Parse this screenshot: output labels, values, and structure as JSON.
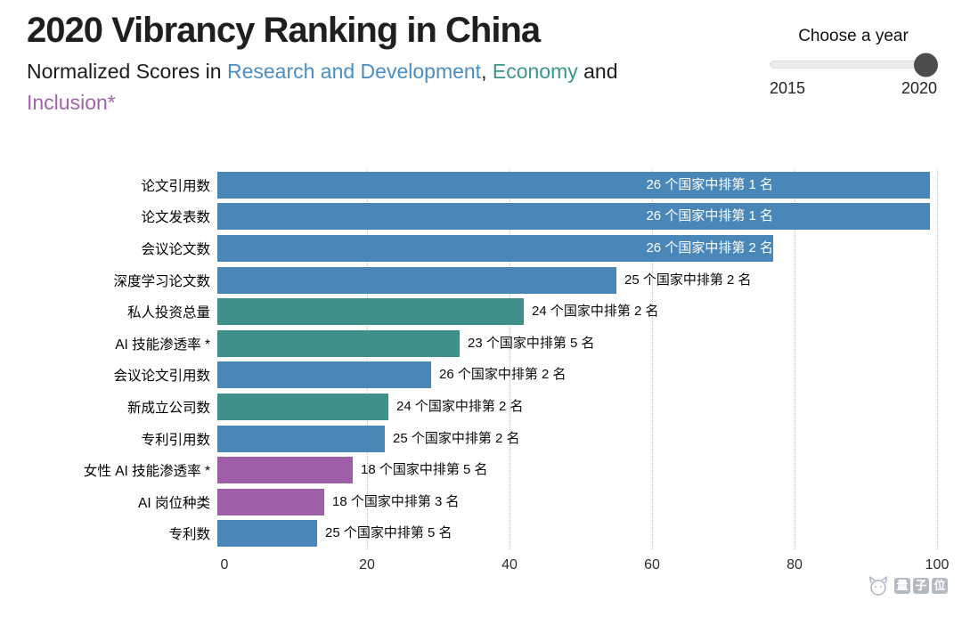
{
  "header": {
    "title": "2020 Vibrancy Ranking in China",
    "subtitle": {
      "prefix": "Normalized Scores in ",
      "rd": "Research and Development",
      "comma": ", ",
      "economy": "Economy",
      "and": " and ",
      "inclusion": "Inclusion*"
    }
  },
  "slider": {
    "label": "Choose a year",
    "min_label": "2015",
    "max_label": "2020",
    "selected_value": "2020"
  },
  "colors": {
    "rd": "#4a87b9",
    "economy": "#3f9089",
    "inclusion": "#9e5fa8"
  },
  "chart_data": {
    "type": "bar",
    "orientation": "horizontal",
    "xlim": [
      0,
      100
    ],
    "ticks": [
      0,
      20,
      40,
      60,
      80,
      100
    ],
    "grid": "dotted-vertical",
    "legend": "color-coded by category: Research and Development (blue), Economy (teal), Inclusion (purple)",
    "rows": [
      {
        "category": "论文引用数",
        "value": 100,
        "group": "rd",
        "rank_label": "26 个国家中排第 1 名",
        "label_inside": true
      },
      {
        "category": "论文发表数",
        "value": 100,
        "group": "rd",
        "rank_label": "26 个国家中排第 1 名",
        "label_inside": true
      },
      {
        "category": "会议论文数",
        "value": 78,
        "group": "rd",
        "rank_label": "26 个国家中排第 2 名",
        "label_inside": true
      },
      {
        "category": "深度学习论文数",
        "value": 56,
        "group": "rd",
        "rank_label": "25 个国家中排第 2 名",
        "label_inside": false
      },
      {
        "category": "私人投资总量",
        "value": 43,
        "group": "economy",
        "rank_label": "24 个国家中排第 2 名",
        "label_inside": false
      },
      {
        "category": "AI 技能渗透率 *",
        "value": 34,
        "group": "economy",
        "rank_label": "23 个国家中排第 5 名",
        "label_inside": false
      },
      {
        "category": "会议论文引用数",
        "value": 30,
        "group": "rd",
        "rank_label": "26 个国家中排第 2 名",
        "label_inside": false
      },
      {
        "category": "新成立公司数",
        "value": 24,
        "group": "economy",
        "rank_label": "24 个国家中排第 2 名",
        "label_inside": false
      },
      {
        "category": "专利引用数",
        "value": 23.5,
        "group": "rd",
        "rank_label": "25 个国家中排第 2 名",
        "label_inside": false
      },
      {
        "category": "女性 AI 技能渗透率 *",
        "value": 19,
        "group": "inclusion",
        "rank_label": "18 个国家中排第 5 名",
        "label_inside": false
      },
      {
        "category": "AI 岗位种类",
        "value": 15,
        "group": "inclusion",
        "rank_label": "18 个国家中排第 3 名",
        "label_inside": false
      },
      {
        "category": "专利数",
        "value": 14,
        "group": "rd",
        "rank_label": "25 个国家中排第 5 名",
        "label_inside": false
      }
    ]
  },
  "watermark": {
    "text": "量子位",
    "chars": [
      "量",
      "子",
      "位"
    ]
  }
}
